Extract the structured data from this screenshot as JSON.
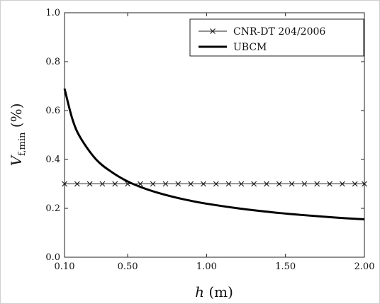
{
  "chart_data": {
    "type": "line",
    "xlabel": "h (m)",
    "ylabel": "Vf,min (%)",
    "xlim": [
      0.1,
      2.0
    ],
    "ylim": [
      0.0,
      1.0
    ],
    "x_ticks": [
      0.1,
      0.5,
      1.0,
      1.5,
      2.0
    ],
    "x_tick_labels": [
      "0.10",
      "0.50",
      "1.00",
      "1.50",
      "2.00"
    ],
    "y_ticks": [
      0.0,
      0.2,
      0.4,
      0.6,
      0.8,
      1.0
    ],
    "y_tick_labels": [
      "0.0",
      "0.2",
      "0.4",
      "0.6",
      "0.8",
      "1.0"
    ],
    "grid": false,
    "legend_position": "top-right",
    "series": [
      {
        "name": "CNR-DT 204/2006",
        "marker": "cross",
        "color": "#222222",
        "x": [
          0.1,
          0.18,
          0.26,
          0.34,
          0.42,
          0.5,
          0.58,
          0.66,
          0.74,
          0.82,
          0.9,
          0.98,
          1.06,
          1.14,
          1.22,
          1.3,
          1.38,
          1.46,
          1.54,
          1.62,
          1.7,
          1.78,
          1.86,
          1.94,
          2.0
        ],
        "y": [
          0.3,
          0.3,
          0.3,
          0.3,
          0.3,
          0.3,
          0.3,
          0.3,
          0.3,
          0.3,
          0.3,
          0.3,
          0.3,
          0.3,
          0.3,
          0.3,
          0.3,
          0.3,
          0.3,
          0.3,
          0.3,
          0.3,
          0.3,
          0.3,
          0.3
        ]
      },
      {
        "name": "UBCM",
        "marker": "none",
        "color": "#000000",
        "x": [
          0.1,
          0.15,
          0.2,
          0.3,
          0.4,
          0.5,
          0.6,
          0.7,
          0.8,
          0.9,
          1.0,
          1.2,
          1.4,
          1.6,
          1.8,
          2.0
        ],
        "y": [
          0.69,
          0.565,
          0.49,
          0.4,
          0.348,
          0.31,
          0.283,
          0.262,
          0.245,
          0.231,
          0.219,
          0.2,
          0.185,
          0.173,
          0.163,
          0.155
        ]
      }
    ]
  }
}
